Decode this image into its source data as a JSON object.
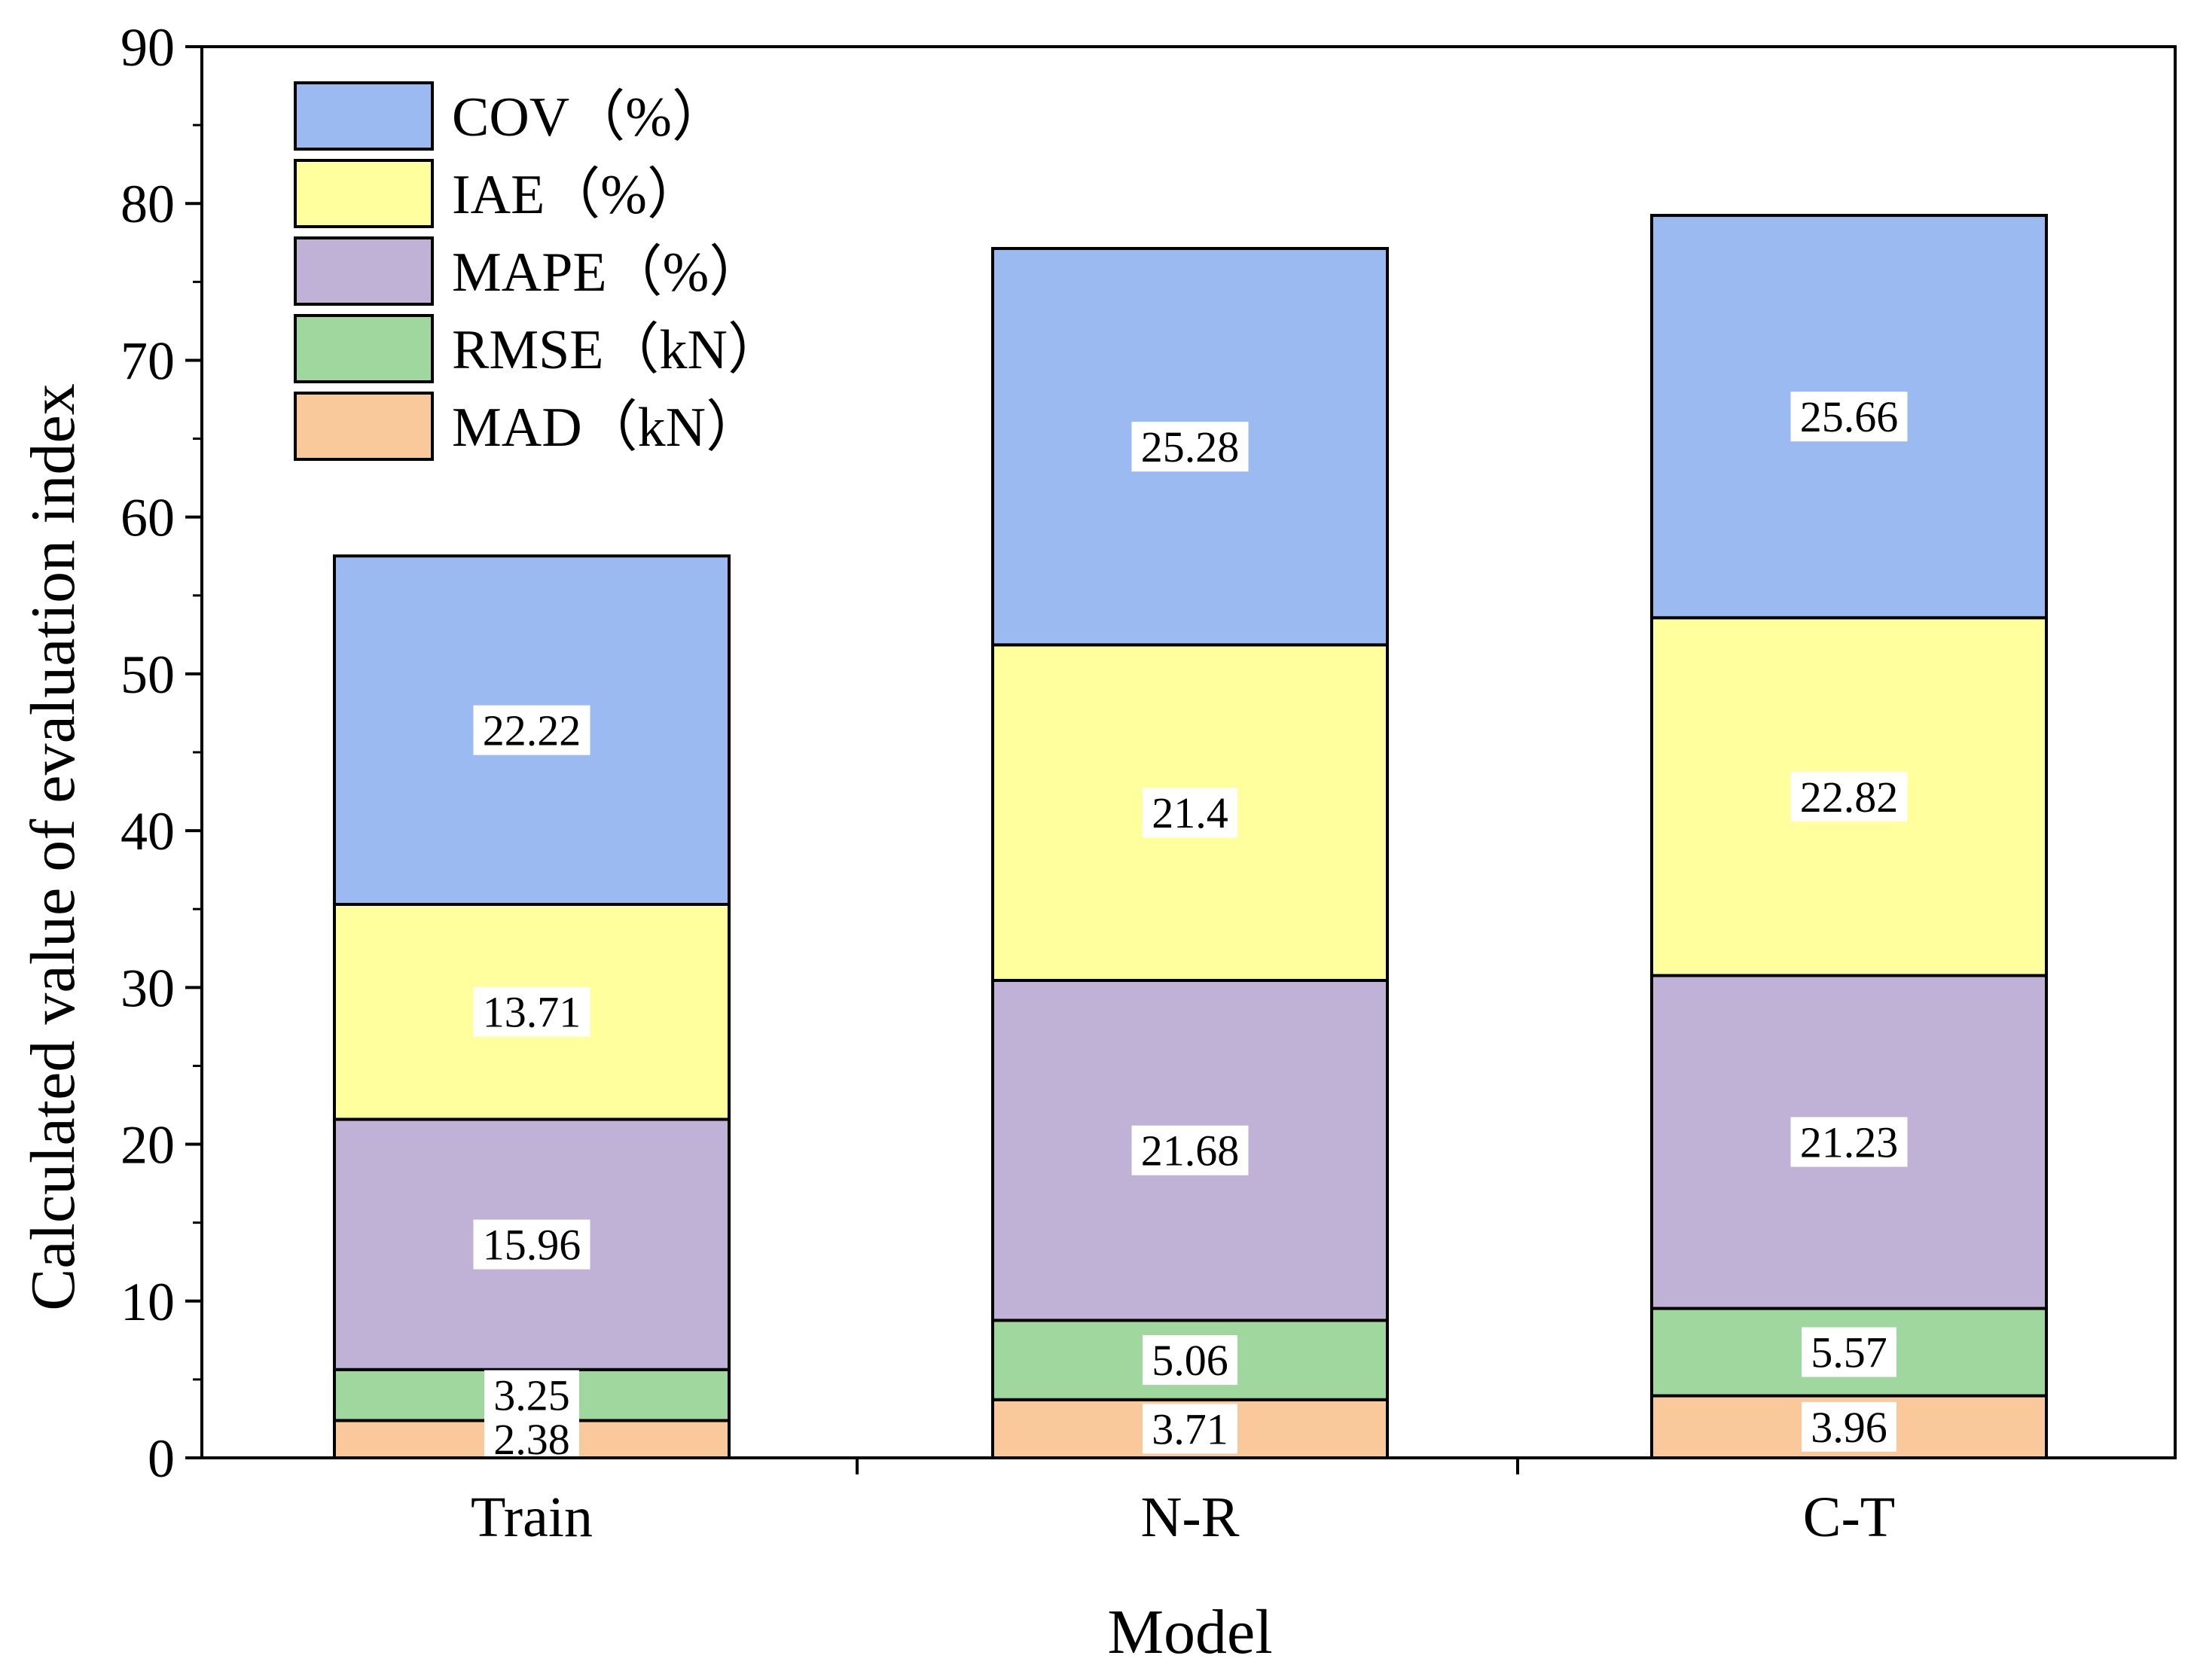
{
  "chart_data": {
    "type": "bar",
    "stacked": true,
    "title": "",
    "xlabel": "Model",
    "ylabel": "Calculated value of  evaluation index",
    "ylim": [
      0,
      90
    ],
    "yticks": [
      0,
      10,
      20,
      30,
      40,
      50,
      60,
      70,
      80,
      90
    ],
    "categories": [
      "Train",
      "N-R",
      "C-T"
    ],
    "series": [
      {
        "name": "MAD（kN）",
        "color": "#f9c89b",
        "values": [
          2.38,
          3.71,
          3.96
        ],
        "labels": [
          "2.38",
          "3.71",
          "3.96"
        ]
      },
      {
        "name": "RMSE（kN）",
        "color": "#a0d79e",
        "values": [
          3.25,
          5.06,
          5.57
        ],
        "labels": [
          "3.25",
          "5.06",
          "5.57"
        ]
      },
      {
        "name": "MAPE（%）",
        "color": "#c0b1d7",
        "values": [
          15.96,
          21.68,
          21.23
        ],
        "labels": [
          "15.96",
          "21.68",
          "21.23"
        ]
      },
      {
        "name": "IAE（%）",
        "color": "#ffff9e",
        "values": [
          13.71,
          21.4,
          22.82
        ],
        "labels": [
          "13.71",
          "21.4",
          "22.82"
        ]
      },
      {
        "name": "COV（%）",
        "color": "#9cbaf2",
        "values": [
          22.22,
          25.28,
          25.66
        ],
        "labels": [
          "22.22",
          "25.28",
          "25.66"
        ]
      }
    ],
    "legend": {
      "position": "top-left",
      "order": [
        "COV（%）",
        "IAE（%）",
        "MAPE（%）",
        "RMSE（kN）",
        "MAD（kN）"
      ]
    },
    "grid": false
  }
}
